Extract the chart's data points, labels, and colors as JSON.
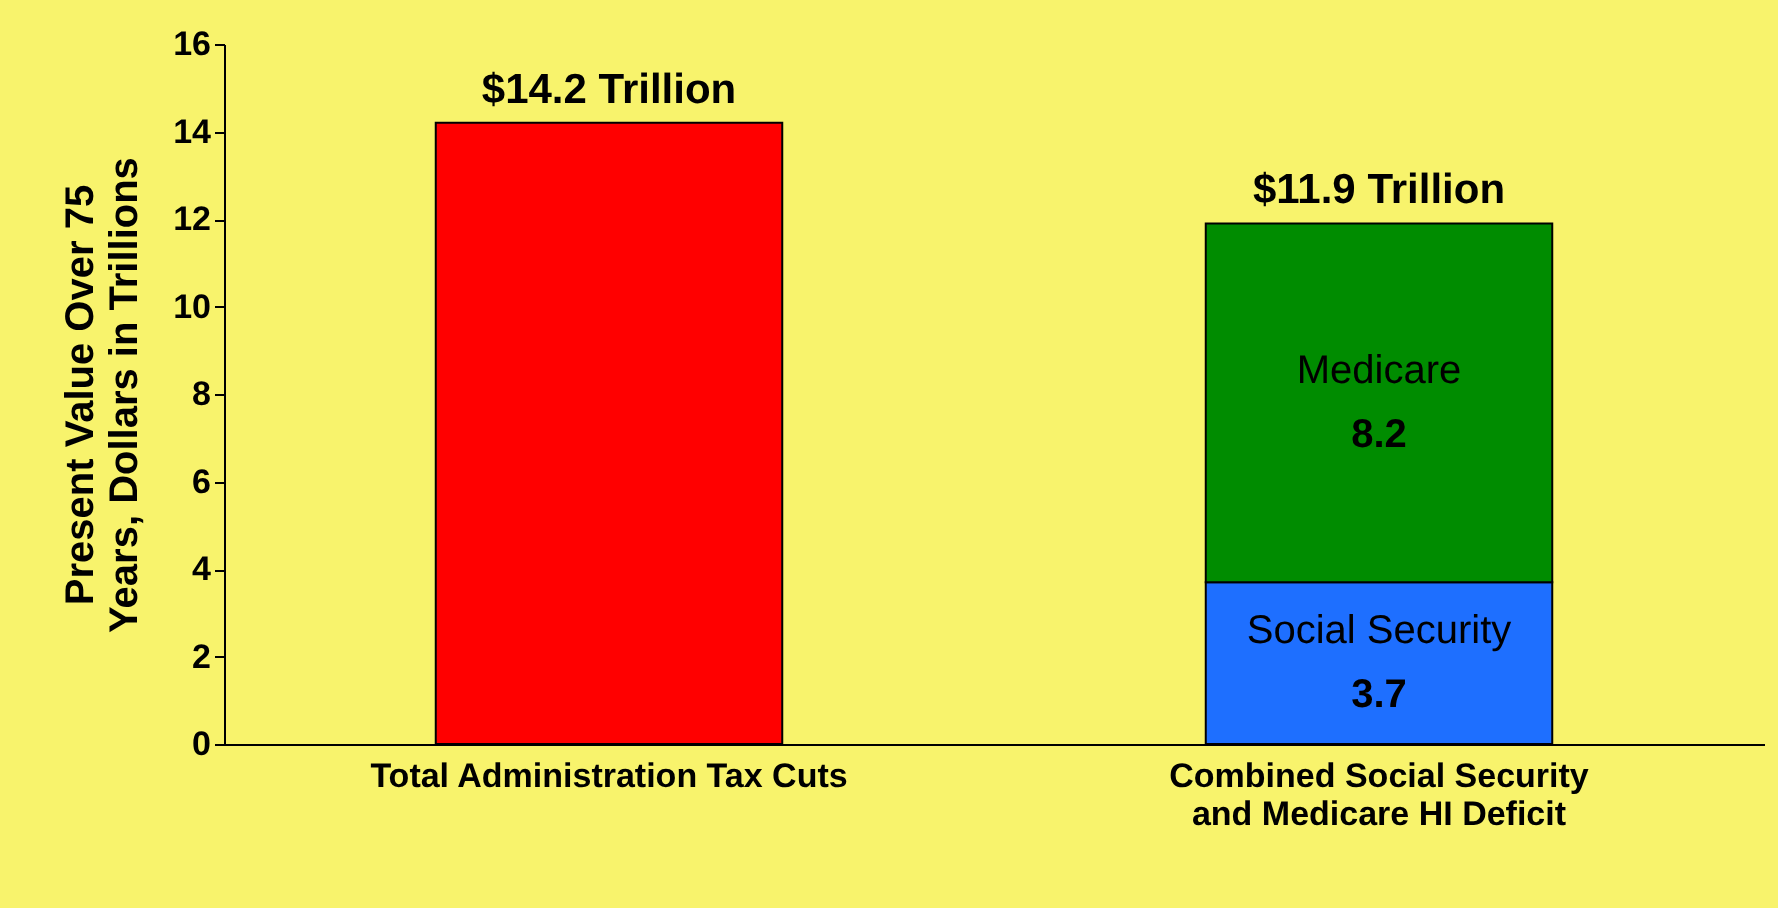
{
  "chart_data": {
    "type": "bar",
    "stacked": true,
    "ylabel": "Present Value Over 75 Years, Dollars in Trillions",
    "categories": [
      "Total Administration Tax Cuts",
      "Combined Social Security and Medicare HI Deficit"
    ],
    "series": [
      {
        "color": "#ff0000",
        "values": [
          14.2,
          null
        ]
      },
      {
        "name": "Social Security",
        "color": "#1e6fff",
        "values": [
          null,
          3.7
        ],
        "value_labels": [
          null,
          "3.7"
        ]
      },
      {
        "name": "Medicare",
        "color": "#008c00",
        "values": [
          null,
          8.2
        ],
        "value_labels": [
          null,
          "8.2"
        ]
      }
    ],
    "totals": [
      "$14.2 Trillion",
      "$11.9 Trillion"
    ],
    "ylim": [
      0,
      16
    ],
    "yticks": [
      0,
      2,
      4,
      6,
      8,
      10,
      12,
      14,
      16
    ],
    "grid": false
  }
}
